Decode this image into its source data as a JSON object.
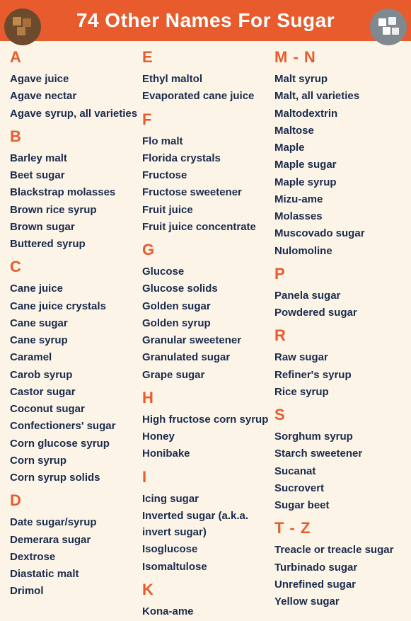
{
  "header": {
    "title": "74 Other Names For Sugar",
    "bg_color": "#e75b2d",
    "text_color": "#ffffff"
  },
  "body_bg": "#fdf4e8",
  "letter_color": "#e75b2d",
  "item_color": "#1a2b4c",
  "columns": [
    {
      "sections": [
        {
          "letter": "A",
          "items": [
            "Agave juice",
            "Agave nectar",
            "Agave syrup, all varieties"
          ]
        },
        {
          "letter": "B",
          "items": [
            "Barley malt",
            "Beet sugar",
            "Blackstrap molasses",
            "Brown rice syrup",
            "Brown sugar",
            "Buttered syrup"
          ]
        },
        {
          "letter": "C",
          "items": [
            "Cane juice",
            "Cane juice crystals",
            "Cane sugar",
            "Cane syrup",
            "Caramel",
            "Carob syrup",
            "Castor sugar",
            "Coconut sugar",
            "Confectioners' sugar",
            "Corn glucose syrup",
            "Corn syrup",
            "Corn syrup solids"
          ]
        },
        {
          "letter": "D",
          "items": [
            "Date sugar/syrup",
            "Demerara sugar",
            "Dextrose",
            "Diastatic malt",
            "Drimol"
          ]
        }
      ]
    },
    {
      "sections": [
        {
          "letter": "E",
          "items": [
            "Ethyl maltol",
            "Evaporated cane juice"
          ]
        },
        {
          "letter": "F",
          "items": [
            "Flo malt",
            "Florida crystals",
            "Fructose",
            "Fructose sweetener",
            "Fruit juice",
            "Fruit juice concentrate"
          ]
        },
        {
          "letter": "G",
          "items": [
            "Glucose",
            "Glucose solids",
            "Golden sugar",
            "Golden syrup",
            "Granular sweetener",
            "Granulated sugar",
            "Grape sugar"
          ]
        },
        {
          "letter": "H",
          "items": [
            "High fructose corn syrup",
            "Honey",
            "Honibake"
          ]
        },
        {
          "letter": "I",
          "items": [
            "Icing sugar",
            "Inverted sugar (a.k.a. invert sugar)",
            "Isoglucose",
            "Isomaltulose"
          ]
        },
        {
          "letter": "K",
          "items": [
            "Kona-ame"
          ]
        }
      ]
    },
    {
      "sections": [
        {
          "letter": "M - N",
          "items": [
            "Malt syrup",
            "Malt, all varieties",
            "Maltodextrin",
            "Maltose",
            "Maple",
            "Maple sugar",
            "Maple syrup",
            "Mizu-ame",
            "Molasses",
            "Muscovado sugar",
            "Nulomoline"
          ]
        },
        {
          "letter": "P",
          "items": [
            "Panela sugar",
            "Powdered sugar"
          ]
        },
        {
          "letter": "R",
          "items": [
            "Raw sugar",
            "Refiner's syrup",
            "Rice syrup"
          ]
        },
        {
          "letter": "S",
          "items": [
            "Sorghum syrup",
            "Starch sweetener",
            "Sucanat",
            "Sucrovert",
            "Sugar beet"
          ]
        },
        {
          "letter": "T - Z",
          "items": [
            "Treacle or treacle sugar",
            "Turbinado sugar",
            "Unrefined sugar",
            "Yellow sugar"
          ]
        }
      ]
    }
  ]
}
